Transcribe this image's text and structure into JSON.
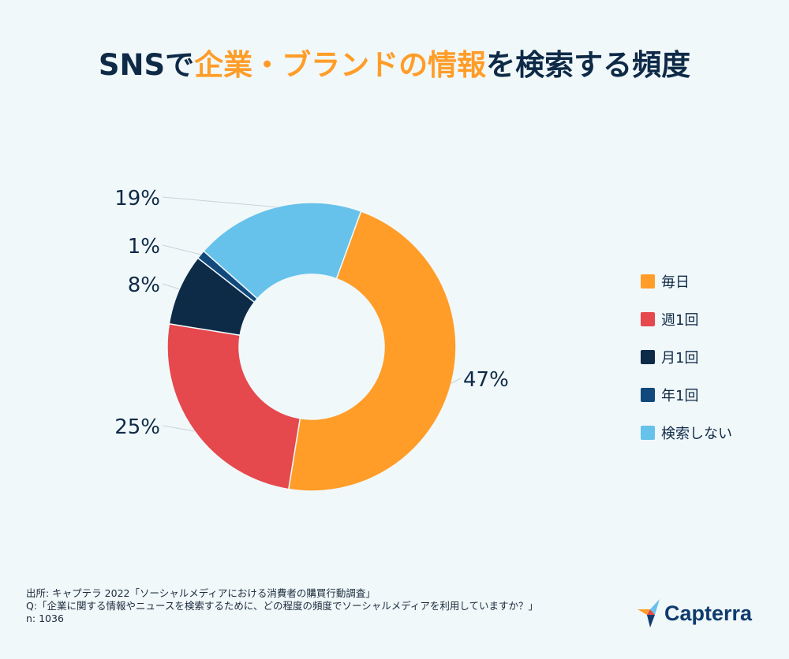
{
  "title": {
    "part1": "SNSで",
    "highlight": "企業・ブランドの情報",
    "part2": "を検索する頻度"
  },
  "chart_data": {
    "type": "pie",
    "subtype": "donut",
    "title": "SNSで企業・ブランドの情報を検索する頻度",
    "categories": [
      "毎日",
      "週1回",
      "月1回",
      "年1回",
      "検索しない"
    ],
    "values": [
      47,
      25,
      8,
      1,
      19
    ],
    "labels": [
      "47%",
      "25%",
      "8%",
      "1%",
      "19%"
    ],
    "colors": [
      "#ff9d28",
      "#e5484d",
      "#0d2a47",
      "#11497d",
      "#66c2ea"
    ],
    "legend_position": "right"
  },
  "footer": {
    "source": "出所: キャプテラ 2022「ソーシャルメディアにおける消費者の購買行動調査」",
    "question": "Q:「企業に関する情報やニュースを検索するために、どの程度の頻度でソーシャルメディアを利用していますか？」",
    "n": "n: 1036"
  },
  "logo": {
    "text": "Capterra"
  }
}
